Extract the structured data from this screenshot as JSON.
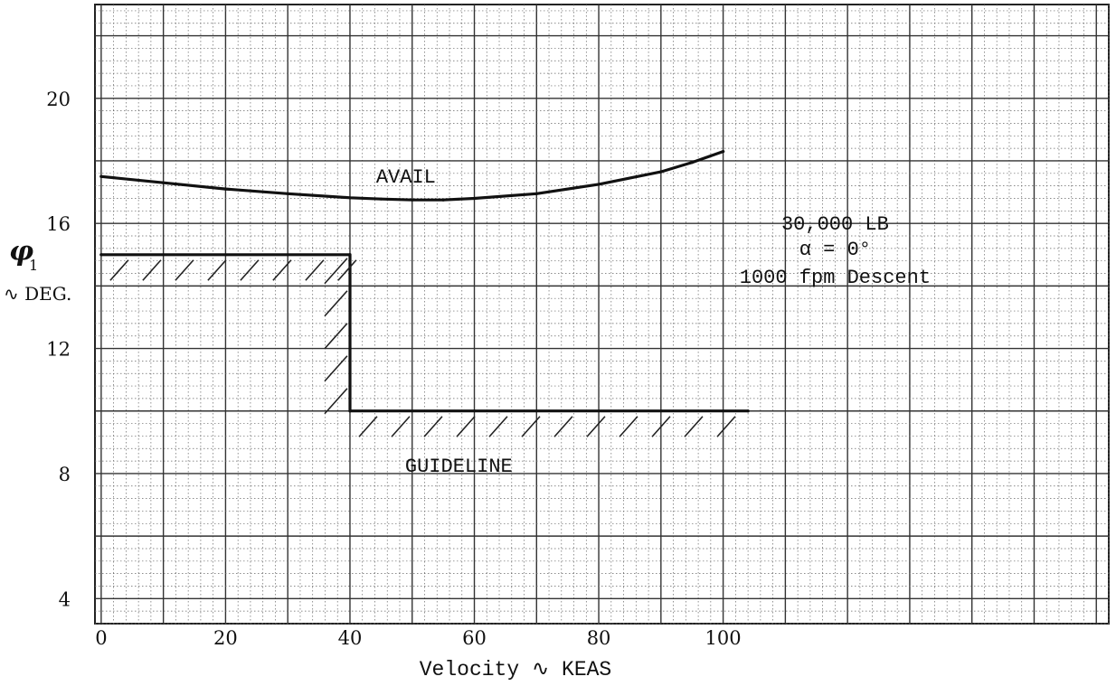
{
  "chart_data": {
    "type": "line",
    "title": "",
    "xlabel": "Velocity ∿ KEAS",
    "ylabel": {
      "symbol": "φ",
      "subscript": "1",
      "unit": "∿ DEG."
    },
    "xlim": [
      -1,
      162
    ],
    "ylim": [
      3.2,
      23
    ],
    "x_ticks": [
      0,
      20,
      40,
      60,
      80,
      100
    ],
    "x_tick_labels": [
      "0",
      "20",
      "40",
      "60",
      "80",
      "100"
    ],
    "y_ticks": [
      4,
      8,
      12,
      16,
      20
    ],
    "y_tick_labels": [
      "4",
      "8",
      "12",
      "16",
      "20"
    ],
    "grid": true,
    "series": [
      {
        "name": "AVAIL",
        "style": "solid",
        "x": [
          0,
          10,
          20,
          30,
          40,
          45,
          50,
          55,
          60,
          70,
          80,
          90,
          95,
          100
        ],
        "y": [
          17.5,
          17.3,
          17.1,
          16.95,
          16.82,
          16.78,
          16.75,
          16.75,
          16.8,
          16.95,
          17.25,
          17.65,
          17.95,
          18.3
        ]
      },
      {
        "name": "GUIDELINE",
        "style": "hatched-boundary",
        "x": [
          0,
          40,
          40,
          104
        ],
        "y": [
          15,
          15,
          10,
          10
        ]
      }
    ],
    "annotations": [
      {
        "text": "AVAIL",
        "x": 49,
        "y": 17.3
      },
      {
        "text": "GUIDELINE",
        "x": 57.5,
        "y": 8.05
      },
      {
        "text": "30,000 LB",
        "x": 118,
        "y": 15.8
      },
      {
        "text": "α = 0°",
        "x": 118,
        "y": 15.0
      },
      {
        "text": "1000 fpm Descent",
        "x": 118,
        "y": 14.1
      }
    ]
  }
}
